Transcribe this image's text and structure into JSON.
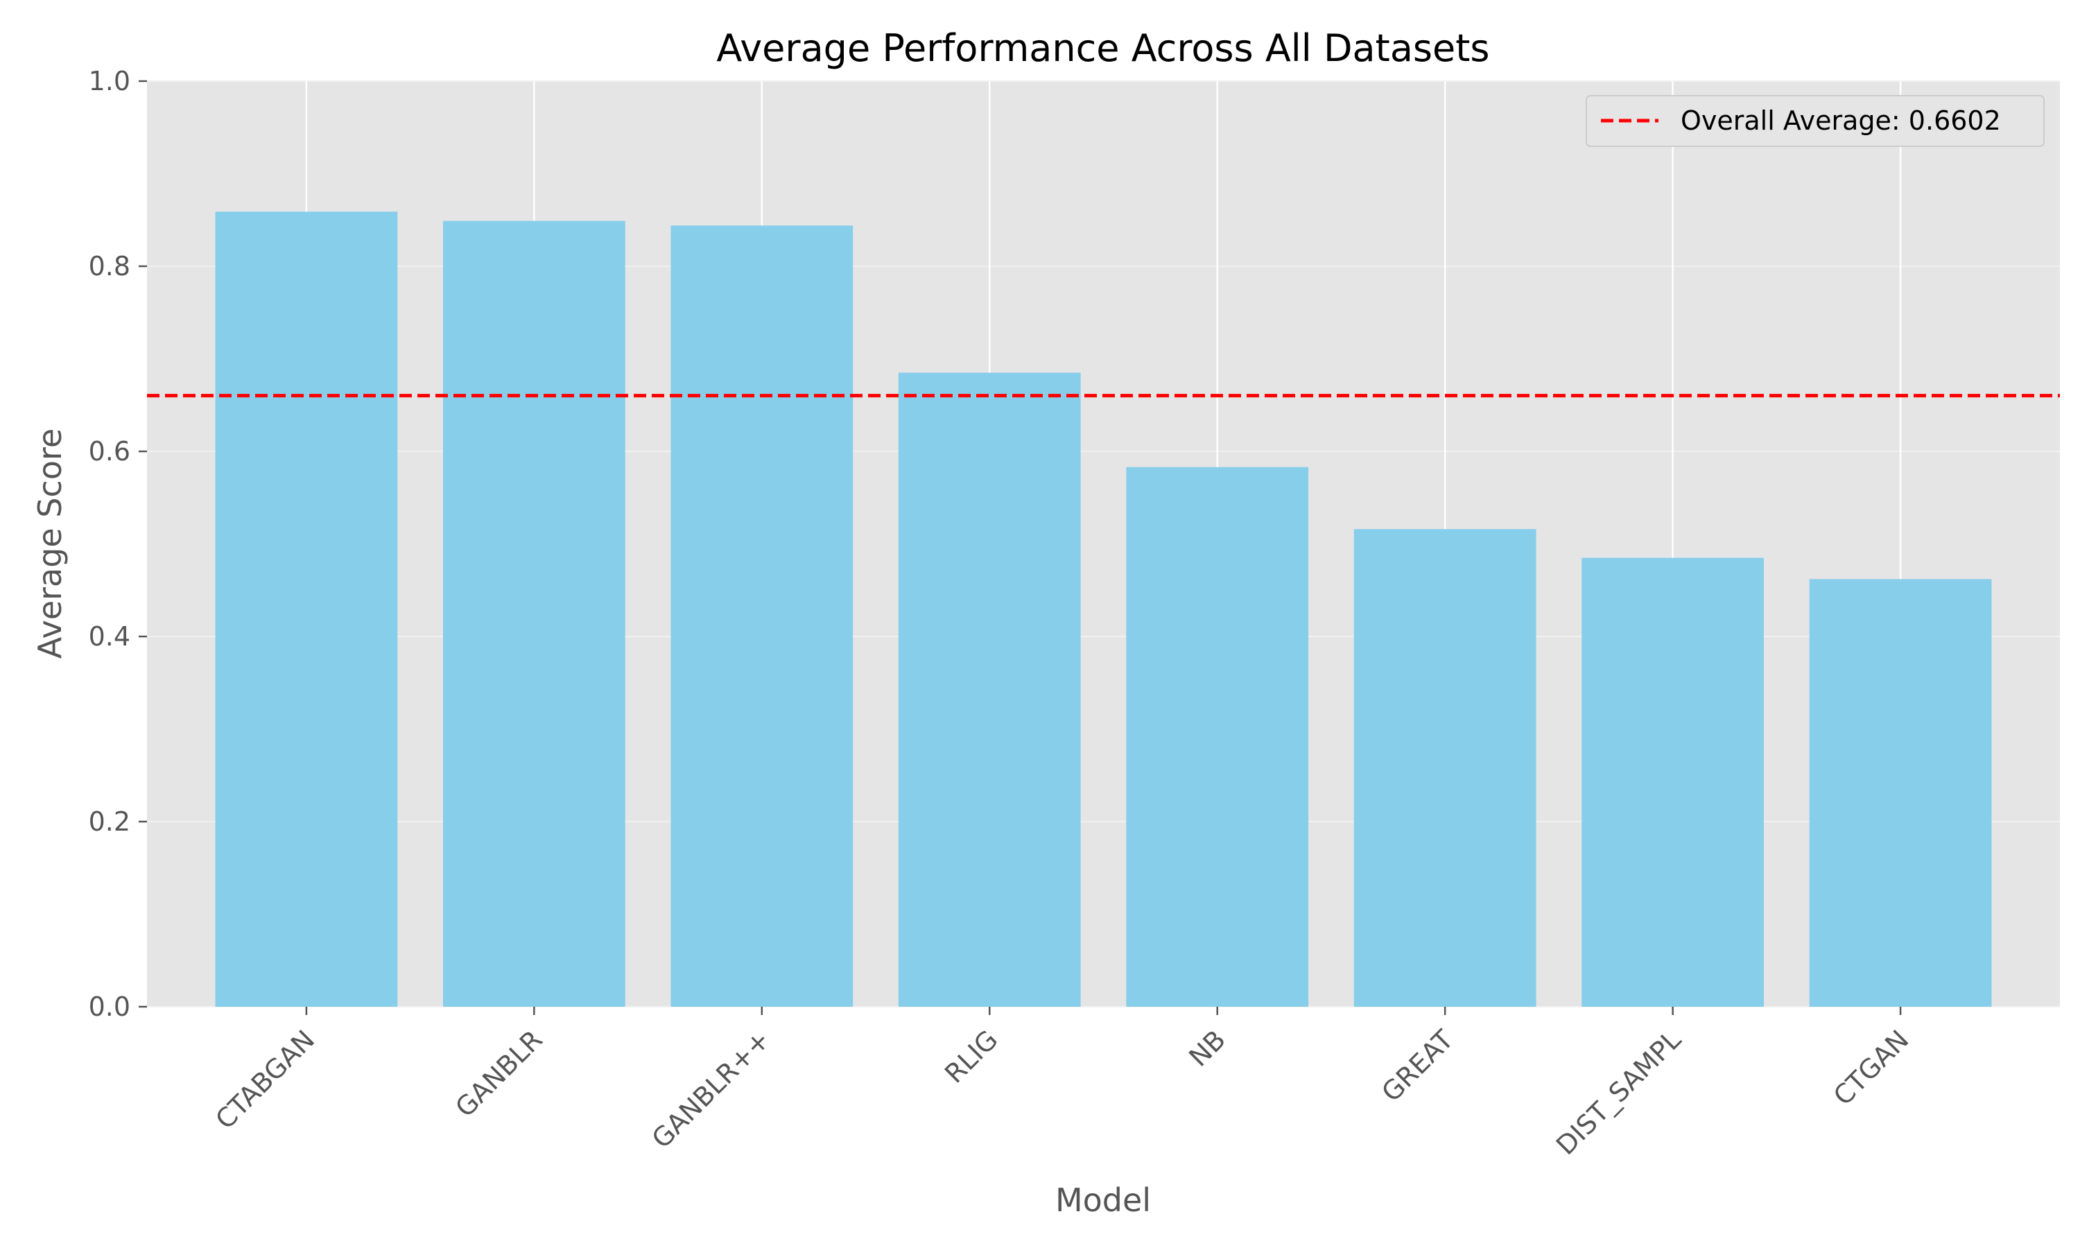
{
  "chart_data": {
    "type": "bar",
    "title": "Average Performance Across All Datasets",
    "xlabel": "Model",
    "ylabel": "Average Score",
    "categories": [
      "CTABGAN",
      "GANBLR",
      "GANBLR++",
      "RLIG",
      "NB",
      "GREAT",
      "DIST_SAMPL",
      "CTGAN"
    ],
    "values": [
      0.859,
      0.849,
      0.844,
      0.685,
      0.583,
      0.516,
      0.485,
      0.462
    ],
    "ylim": [
      0,
      1.0
    ],
    "yticks": [
      0.0,
      0.2,
      0.4,
      0.6,
      0.8,
      1.0
    ],
    "ytick_labels": [
      "0.0",
      "0.2",
      "0.4",
      "0.6",
      "0.8",
      "1.0"
    ],
    "grid": true,
    "legend_position": "top-right",
    "reference_line": {
      "value": 0.6602,
      "label": "Overall Average: 0.6602",
      "style": "dashed",
      "color": "#ff0000"
    },
    "colors": {
      "bar": "#87ceeb",
      "plot_background": "#e5e5e5",
      "grid": "#ffffff"
    }
  }
}
